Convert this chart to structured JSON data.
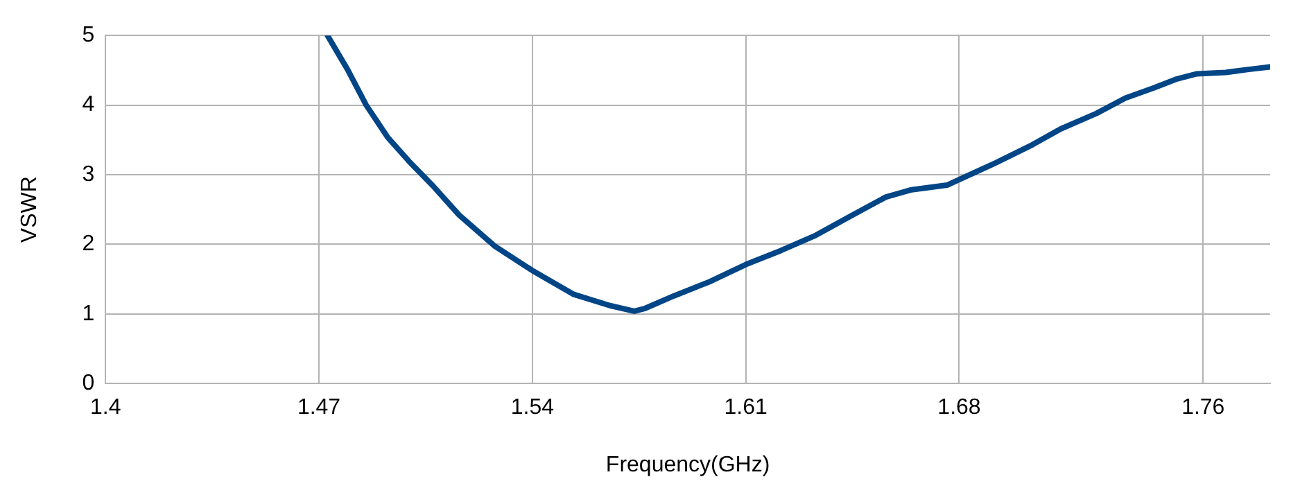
{
  "chart_data": {
    "type": "line",
    "xlabel": "Frequency(GHz)",
    "ylabel": "VSWR",
    "series": [
      {
        "color": "#004586",
        "x": [
          1.4728,
          1.4794,
          1.4855,
          1.4925,
          1.4996,
          1.5076,
          1.516,
          1.5278,
          1.5405,
          1.5536,
          1.5654,
          1.5734,
          1.577,
          1.5865,
          1.598,
          1.61,
          1.6215,
          1.633,
          1.645,
          1.656,
          1.664,
          1.676,
          1.685,
          1.692,
          1.704,
          1.7134,
          1.725,
          1.7345,
          1.744,
          1.751,
          1.758,
          1.7674,
          1.7745,
          1.782
        ],
        "values": [
          5.0,
          4.51,
          4.0,
          3.54,
          3.19,
          2.83,
          2.42,
          1.97,
          1.61,
          1.28,
          1.12,
          1.04,
          1.08,
          1.26,
          1.46,
          1.71,
          1.91,
          2.13,
          2.42,
          2.68,
          2.78,
          2.85,
          3.03,
          3.17,
          3.43,
          3.66,
          3.88,
          4.1,
          4.25,
          4.37,
          4.45,
          4.47,
          4.51,
          4.55
        ]
      }
    ],
    "xlim": [
      1.4,
      1.782
    ],
    "xticks": [
      1.4,
      1.47,
      1.54,
      1.61,
      1.68,
      1.76
    ],
    "ylim": [
      0,
      5
    ],
    "yticks": [
      0,
      1,
      2,
      3,
      4,
      5
    ],
    "grid": true,
    "legend": false,
    "marker": "none",
    "line_style": "solid"
  }
}
